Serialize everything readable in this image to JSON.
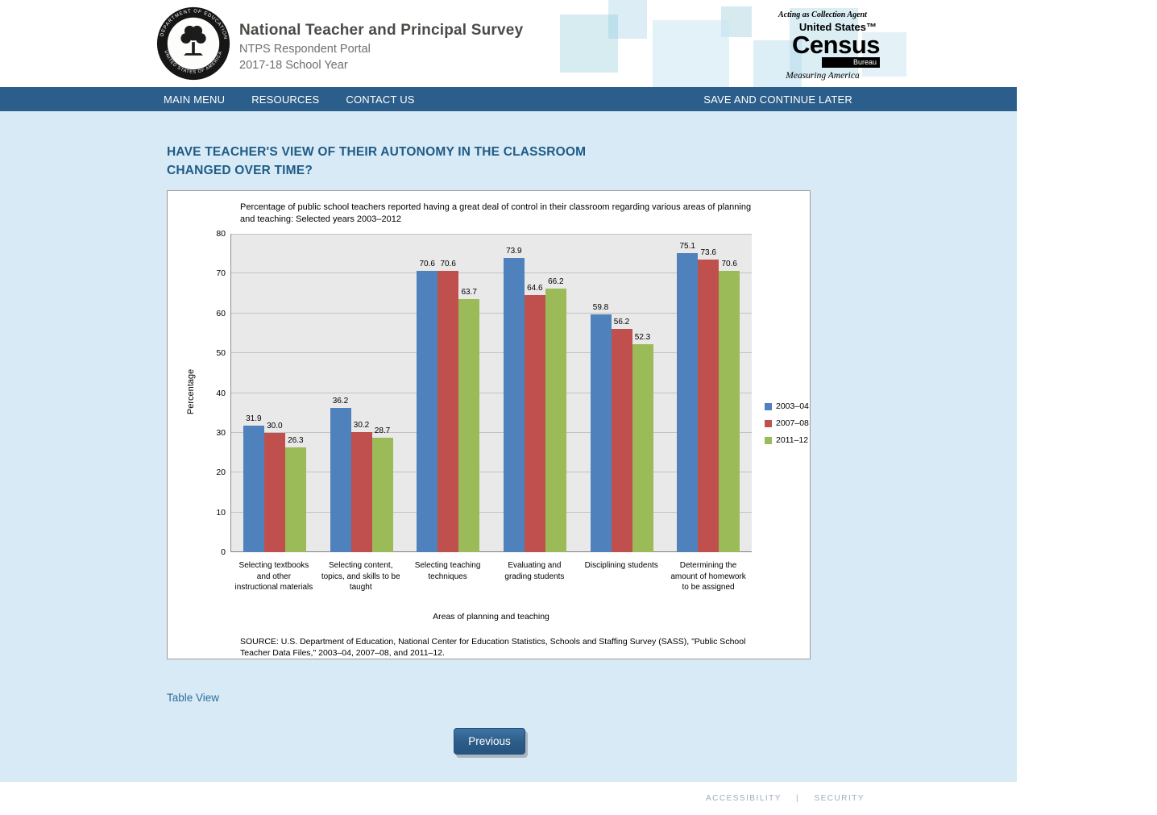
{
  "header": {
    "title": "National Teacher and Principal Survey",
    "subtitle": "NTPS Respondent Portal",
    "school_year": "2017-18 School Year",
    "seal": {
      "top_text": "DEPARTMENT OF EDUCATION",
      "bottom_text": "UNITED STATES OF AMERICA"
    },
    "census_logo": {
      "agent_line": "Acting as Collection Agent",
      "united_states": "United States™",
      "census": "Census",
      "bureau": "Bureau",
      "tagline": "Measuring America"
    }
  },
  "nav": {
    "items": [
      "MAIN MENU",
      "RESOURCES",
      "CONTACT US"
    ],
    "save_link": "SAVE AND CONTINUE LATER"
  },
  "main": {
    "heading_line1": "HAVE TEACHER'S VIEW OF THEIR AUTONOMY IN THE CLASSROOM",
    "heading_line2": "CHANGED OVER TIME?",
    "table_view_link": "Table View",
    "previous_button": "Previous"
  },
  "chart_data": {
    "type": "bar",
    "title": "Percentage of public school teachers reported having a great deal of control in their classroom regarding various areas of planning and teaching: Selected years 2003–2012",
    "xlabel": "Areas of planning and teaching",
    "ylabel": "Percentage",
    "ylim": [
      0,
      80
    ],
    "yticks": [
      0,
      10,
      20,
      30,
      40,
      50,
      60,
      70,
      80
    ],
    "grid": true,
    "legend_position": "right",
    "categories": [
      "Selecting textbooks and other instructional materials",
      "Selecting content, topics, and skills to be taught",
      "Selecting teaching techniques",
      "Evaluating and grading students",
      "Disciplining students",
      "Determining the amount of homework to be assigned"
    ],
    "series": [
      {
        "name": "2003–04",
        "color": "#4F81BD",
        "values": [
          31.9,
          36.2,
          70.6,
          73.9,
          59.8,
          75.1
        ]
      },
      {
        "name": "2007–08",
        "color": "#C0504D",
        "values": [
          30.0,
          30.2,
          70.6,
          64.6,
          56.2,
          73.6
        ]
      },
      {
        "name": "2011–12",
        "color": "#9BBB59",
        "values": [
          26.3,
          28.7,
          63.7,
          66.2,
          52.3,
          70.6
        ]
      }
    ],
    "source": "SOURCE: U.S. Department of Education, National Center for Education Statistics, Schools and Staffing Survey (SASS), \"Public School Teacher Data Files,\" 2003–04, 2007–08, and 2011–12."
  },
  "footer": {
    "links": [
      "ACCESSIBILITY",
      "SECURITY"
    ],
    "separator": "|"
  }
}
